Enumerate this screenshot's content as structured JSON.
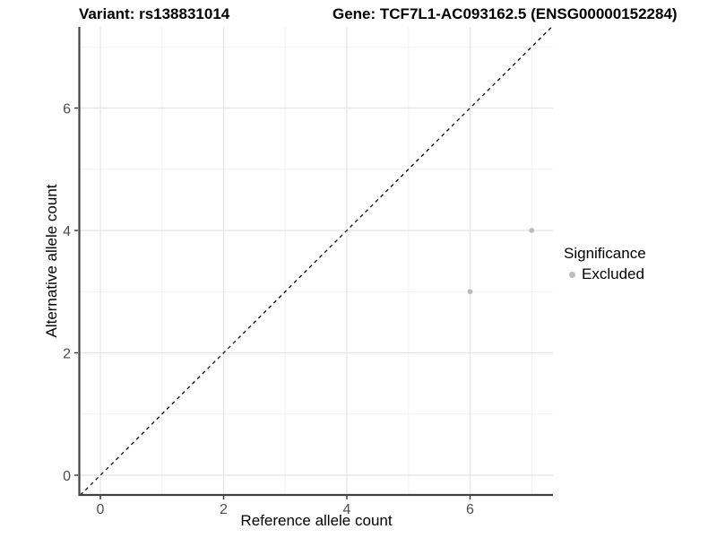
{
  "chart_data": {
    "type": "scatter",
    "titles": {
      "left": "Variant: rs138831014",
      "right": "Gene: TCF7L1-AC093162.5 (ENSG00000152284)"
    },
    "xlabel": "Reference allele count",
    "ylabel": "Alternative allele count",
    "x_axis": {
      "ticks": [
        0,
        2,
        4,
        6
      ],
      "minor_ticks": [
        1,
        3,
        5,
        7
      ],
      "range": [
        -0.335,
        7.345
      ]
    },
    "y_axis": {
      "ticks": [
        0,
        2,
        4,
        6
      ],
      "minor_ticks": [
        1,
        3,
        5,
        7
      ],
      "range": [
        -0.325,
        7.33
      ]
    },
    "identity_line": {
      "equation": "y = x",
      "style": "dashed",
      "color": "#000000"
    },
    "series": [
      {
        "name": "Excluded",
        "color": "#bdbdbd",
        "points": [
          [
            6,
            3
          ],
          [
            7,
            4
          ]
        ]
      }
    ],
    "legend": {
      "title": "Significance",
      "position": "right",
      "items": [
        {
          "label": "Excluded",
          "color": "#bdbdbd"
        }
      ]
    },
    "colors": {
      "background": "#ffffff",
      "grid_major": "#e4e4e4",
      "grid_minor": "#f1f1f1",
      "axis_line": "#424242",
      "tick_mark": "#333333",
      "tick_label": "#4d4d4d"
    }
  }
}
